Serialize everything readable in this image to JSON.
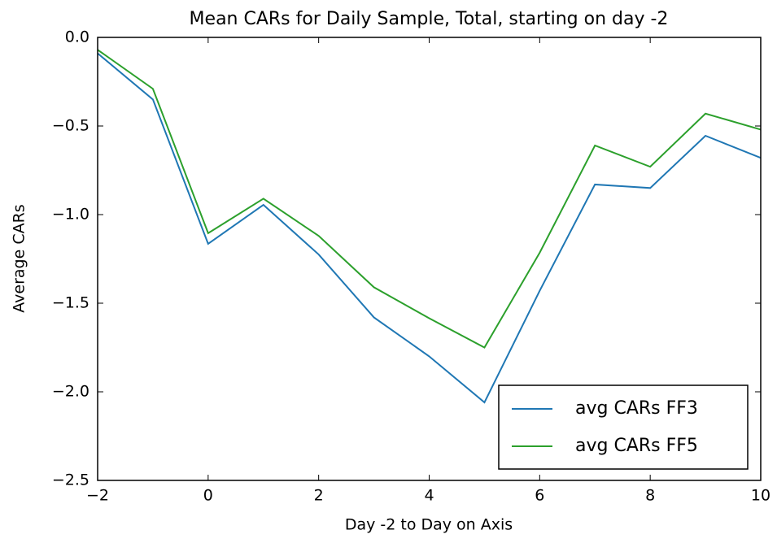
{
  "chart_data": {
    "type": "line",
    "title": "Mean CARs for Daily Sample, Total, starting on day -2",
    "x_label": "Day -2 to Day on Axis",
    "y_label": "Average CARs",
    "x": [
      -2,
      -1,
      0,
      1,
      2,
      3,
      4,
      5,
      6,
      7,
      8,
      9,
      10
    ],
    "series": [
      {
        "name": "avg CARs FF3",
        "color": "#1f77b4",
        "values": [
          -0.09,
          -0.35,
          -1.165,
          -0.945,
          -1.225,
          -1.58,
          -1.8,
          -2.06,
          -1.43,
          -0.83,
          -0.85,
          -0.555,
          -0.68
        ]
      },
      {
        "name": "avg CARs FF5",
        "color": "#2ca02c",
        "values": [
          -0.07,
          -0.29,
          -1.105,
          -0.91,
          -1.12,
          -1.41,
          -1.585,
          -1.75,
          -1.215,
          -0.61,
          -0.73,
          -0.43,
          -0.52
        ]
      }
    ],
    "xlim": [
      -2,
      10
    ],
    "xticks": [
      {
        "value": -2,
        "label": "−2"
      },
      0,
      2,
      4,
      6,
      8,
      10
    ],
    "ylim": [
      -2.5,
      0
    ],
    "yticks": [
      {
        "value": -2.5,
        "label": "−2.5"
      },
      {
        "value": -2,
        "label": "−2.0"
      },
      {
        "value": -1.5,
        "label": "−1.5"
      },
      {
        "value": -1,
        "label": "−1.0"
      },
      {
        "value": -0.5,
        "label": "−0.5"
      },
      {
        "value": 0,
        "label": "0.0"
      }
    ],
    "legend": "lower right"
  }
}
